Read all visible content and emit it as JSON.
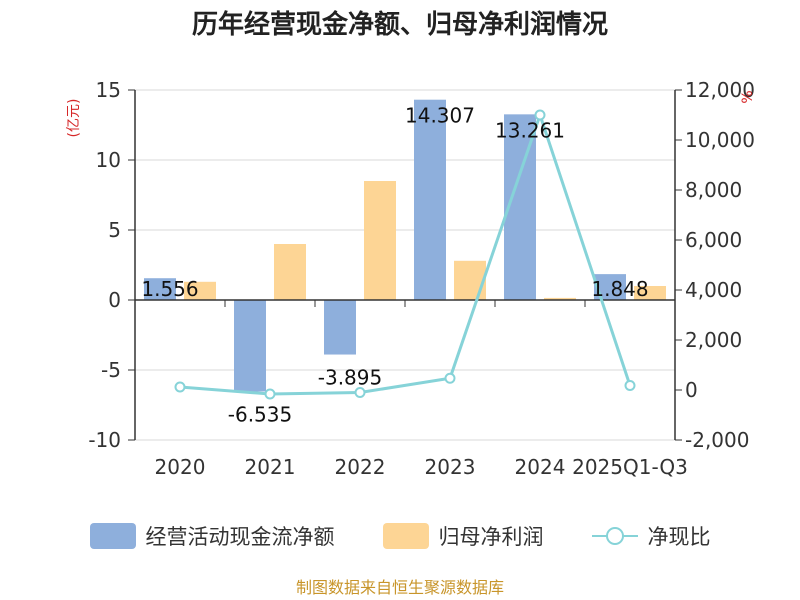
{
  "chart_data": {
    "type": "bar",
    "title": "历年经营现金净额、归母净利润情况",
    "categories": [
      "2020",
      "2021",
      "2022",
      "2023",
      "2024",
      "2025Q1-Q3"
    ],
    "left_unit": "(亿元)",
    "right_unit": "%",
    "left_axis": {
      "min": -10,
      "max": 15,
      "ticks": [
        -10,
        -5,
        0,
        5,
        10,
        15
      ]
    },
    "right_axis": {
      "min": -2000,
      "max": 12000,
      "ticks": [
        "-2,000",
        "0",
        "2,000",
        "4,000",
        "6,000",
        "8,000",
        "10,000",
        "12,000"
      ],
      "tick_values": [
        -2000,
        0,
        2000,
        4000,
        6000,
        8000,
        10000,
        12000
      ]
    },
    "series": [
      {
        "name": "经营活动现金流净额",
        "kind": "bar",
        "axis": "left",
        "color": "#8eafdc",
        "values": [
          1.556,
          -6.535,
          -3.895,
          14.307,
          13.261,
          1.848
        ],
        "labels": [
          "1.556",
          "-6.535",
          "-3.895",
          "14.307",
          "13.261",
          "1.848"
        ]
      },
      {
        "name": "归母净利润",
        "kind": "bar",
        "axis": "left",
        "color": "#fdd595",
        "values": [
          1.3,
          4.0,
          8.5,
          2.8,
          0.15,
          1.0
        ]
      },
      {
        "name": "净现比",
        "kind": "line",
        "axis": "right",
        "color": "#86d3d8",
        "values": [
          120,
          -160,
          -100,
          470,
          11000,
          180
        ]
      }
    ]
  },
  "legend": [
    "经营活动现金流净额",
    "归母净利润",
    "净现比"
  ],
  "source": "制图数据来自恒生聚源数据库"
}
